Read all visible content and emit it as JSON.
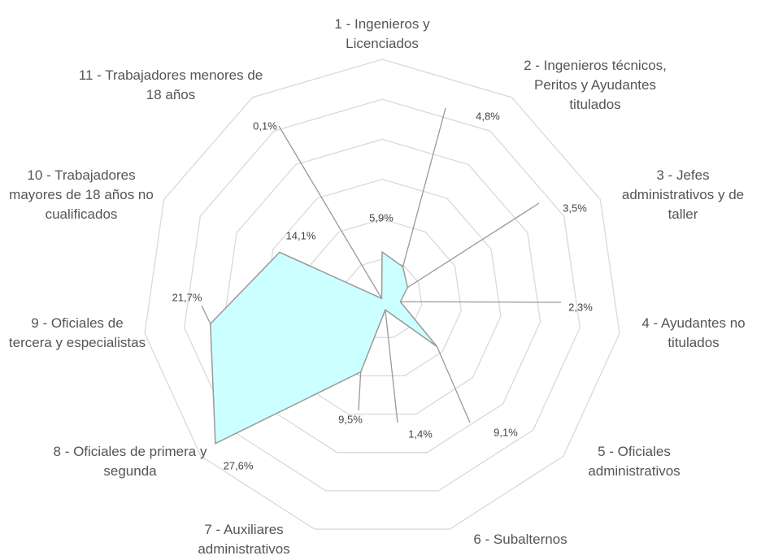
{
  "chart_data": {
    "type": "radar",
    "categories": [
      "1 - Ingenieros y Licenciados",
      "2 - Ingenieros técnicos, Peritos y Ayudantes titulados",
      "3 - Jefes administrativos y de taller",
      "4 - Ayudantes no titulados",
      "5 - Oficiales administrativos",
      "6 - Subalternos",
      "7 - Auxiliares administrativos",
      "8 - Oficiales de primera y segunda",
      "9 - Oficiales de tercera y especialistas",
      "10 - Trabajadores mayores de 18 años no cualificados",
      "11 - Trabajadores menores de 18 años"
    ],
    "values": [
      5.9,
      4.8,
      3.5,
      2.3,
      9.1,
      1.4,
      9.5,
      27.6,
      21.7,
      14.1,
      0.1
    ],
    "value_labels": [
      "5,9%",
      "4,8%",
      "3,5%",
      "2,3%",
      "9,1%",
      "1,4%",
      "9,5%",
      "27,6%",
      "21,7%",
      "14,1%",
      "0,1%"
    ],
    "color": "#ccffff",
    "ylim": [
      0,
      30
    ],
    "yticks": [
      0,
      5,
      10,
      15,
      20,
      25,
      30
    ],
    "grid": true
  }
}
